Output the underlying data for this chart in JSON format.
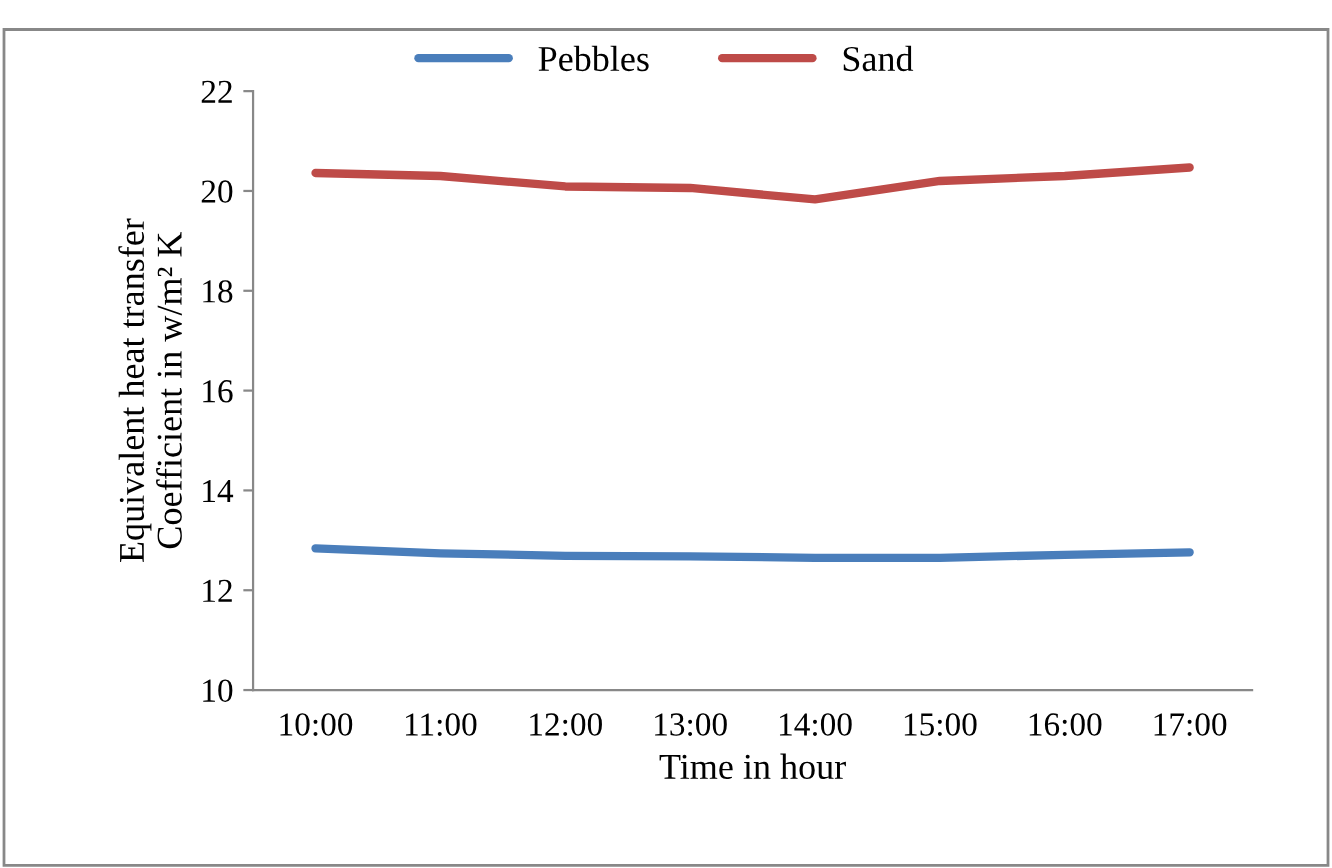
{
  "chart_data": {
    "type": "line",
    "xlabel": "Time in hour",
    "ylabel": "Equivalent heat transfer\nCoefficient in w/m² K",
    "categories": [
      "10:00",
      "11:00",
      "12:00",
      "13:00",
      "14:00",
      "15:00",
      "16:00",
      "17:00"
    ],
    "series": [
      {
        "name": "Pebbles",
        "color": "#4a7ebb",
        "values": [
          12.84,
          12.74,
          12.69,
          12.68,
          12.65,
          12.65,
          12.71,
          12.76
        ]
      },
      {
        "name": "Sand",
        "color": "#be4b48",
        "values": [
          20.36,
          20.3,
          20.09,
          20.06,
          19.83,
          20.2,
          20.3,
          20.47
        ]
      }
    ],
    "ylim": [
      10,
      22
    ],
    "yticks": [
      10,
      12,
      14,
      16,
      18,
      20,
      22
    ],
    "grid": false,
    "legend": "top",
    "marker": "none",
    "line_style": "solid"
  }
}
